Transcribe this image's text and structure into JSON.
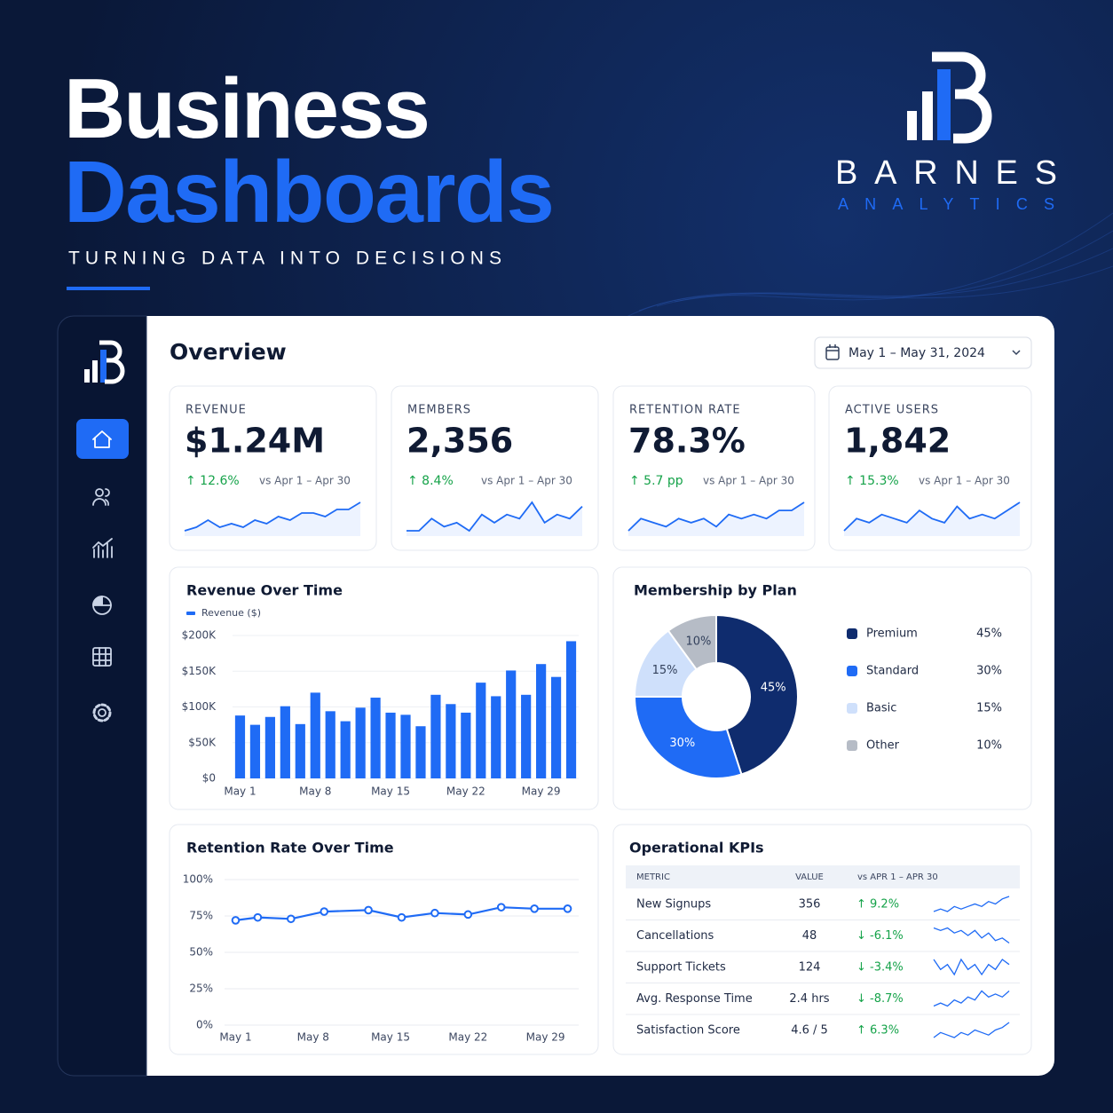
{
  "header": {
    "title_line1": "Business",
    "title_line2": "Dashboards",
    "tagline": "TURNING DATA INTO DECISIONS"
  },
  "brand": {
    "name": "BARNES",
    "subtitle": "ANALYTICS"
  },
  "dashboard": {
    "title": "Overview",
    "date_range": "May 1 – May 31, 2024",
    "kpis": [
      {
        "label": "REVENUE",
        "value": "$1.24M",
        "change": "↑ 12.6%",
        "comparison": "vs Apr 1 – Apr 30",
        "trend": [
          2,
          3,
          5,
          3,
          4,
          3,
          5,
          4,
          6,
          5,
          7,
          7,
          6,
          8,
          8,
          10
        ]
      },
      {
        "label": "MEMBERS",
        "value": "2,356",
        "change": "↑ 8.4%",
        "comparison": "vs Apr 1 – Apr 30",
        "trend": [
          2,
          2,
          5,
          3,
          4,
          2,
          6,
          4,
          6,
          5,
          9,
          4,
          6,
          5,
          8
        ]
      },
      {
        "label": "RETENTION RATE",
        "value": "78.3%",
        "change": "↑ 5.7 pp",
        "comparison": "vs Apr 1 – Apr 30",
        "trend": [
          2,
          5,
          4,
          3,
          5,
          4,
          5,
          3,
          6,
          5,
          6,
          5,
          7,
          7,
          9
        ]
      },
      {
        "label": "ACTIVE USERS",
        "value": "1,842",
        "change": "↑ 15.3%",
        "comparison": "vs Apr 1 – Apr 30",
        "trend": [
          2,
          5,
          4,
          6,
          5,
          4,
          7,
          5,
          4,
          8,
          5,
          6,
          5,
          7,
          9
        ]
      }
    ],
    "table": {
      "title": "Operational KPIs",
      "columns": [
        "METRIC",
        "VALUE",
        "vs APR 1 – APR 30"
      ],
      "rows": [
        {
          "metric": "New Signups",
          "value": "356",
          "change": "↑ 9.2%",
          "trend": [
            3,
            4,
            3,
            5,
            4,
            5,
            6,
            5,
            7,
            6,
            8,
            9
          ]
        },
        {
          "metric": "Cancellations",
          "value": "48",
          "change": "↓ -6.1%",
          "trend": [
            8,
            7,
            8,
            6,
            7,
            5,
            7,
            4,
            6,
            3,
            4,
            2
          ]
        },
        {
          "metric": "Support Tickets",
          "value": "124",
          "change": "↓ -3.4%",
          "trend": [
            6,
            4,
            5,
            3,
            6,
            4,
            5,
            3,
            5,
            4,
            6,
            5
          ]
        },
        {
          "metric": "Avg. Response Time",
          "value": "2.4 hrs",
          "change": "↓ -8.7%",
          "trend": [
            3,
            4,
            3,
            5,
            4,
            6,
            5,
            8,
            6,
            7,
            6,
            8
          ]
        },
        {
          "metric": "Satisfaction Score",
          "value": "4.6 / 5",
          "change": "↑ 6.3%",
          "trend": [
            3,
            5,
            4,
            3,
            5,
            4,
            6,
            5,
            4,
            6,
            7,
            9
          ]
        }
      ]
    }
  },
  "chart_data": [
    {
      "type": "bar",
      "title": "Revenue Over Time",
      "categories": [
        "May 1",
        null,
        null,
        null,
        null,
        "May 8",
        null,
        null,
        null,
        null,
        "May 15",
        null,
        null,
        null,
        null,
        "May 22",
        null,
        null,
        null,
        null,
        "May 29",
        null,
        null
      ],
      "series": [
        {
          "name": "Revenue ($)",
          "color": "#1f6bf5",
          "values": [
            88000,
            75000,
            86000,
            101000,
            76000,
            120000,
            94000,
            80000,
            99000,
            113000,
            92000,
            89000,
            73000,
            117000,
            104000,
            92000,
            134000,
            115000,
            151000,
            117000,
            160000,
            142000,
            192000
          ]
        }
      ],
      "ylim": [
        0,
        200000
      ],
      "yticks": [
        {
          "value": 0,
          "label": "$0"
        },
        {
          "value": 50000,
          "label": "$50K"
        },
        {
          "value": 100000,
          "label": "$100K"
        },
        {
          "value": 150000,
          "label": "$150K"
        },
        {
          "value": 200000,
          "label": "$200K"
        }
      ],
      "grid": true
    },
    {
      "type": "pie",
      "title": "Membership by Plan",
      "categories": [
        "Premium",
        "Standard",
        "Basic",
        "Other"
      ],
      "values": [
        45,
        30,
        15,
        10
      ],
      "value_labels": [
        "45%",
        "30%",
        "15%",
        "10%"
      ],
      "colors": [
        "#0f2c6e",
        "#1f6bf5",
        "#cfe0fb",
        "#b6bcc6"
      ],
      "donut": true
    },
    {
      "type": "line",
      "title": "Retention Rate Over Time",
      "x": [
        1,
        3,
        6,
        9,
        13,
        16,
        19,
        22,
        25,
        28,
        31
      ],
      "series": [
        {
          "name": "Retention Rate",
          "color": "#1f6bf5",
          "values": [
            72,
            74,
            73,
            78,
            79,
            74,
            77,
            76,
            81,
            80,
            80
          ]
        }
      ],
      "xlim": [
        0,
        32
      ],
      "xticks": [
        {
          "value": 1,
          "label": "May 1"
        },
        {
          "value": 8,
          "label": "May 8"
        },
        {
          "value": 15,
          "label": "May 15"
        },
        {
          "value": 22,
          "label": "May 22"
        },
        {
          "value": 29,
          "label": "May 29"
        }
      ],
      "ylim": [
        0,
        100
      ],
      "yticks": [
        {
          "value": 0,
          "label": "0%"
        },
        {
          "value": 25,
          "label": "25%"
        },
        {
          "value": 50,
          "label": "50%"
        },
        {
          "value": 75,
          "label": "75%"
        },
        {
          "value": 100,
          "label": "100%"
        }
      ],
      "grid": true,
      "legend": false
    }
  ]
}
